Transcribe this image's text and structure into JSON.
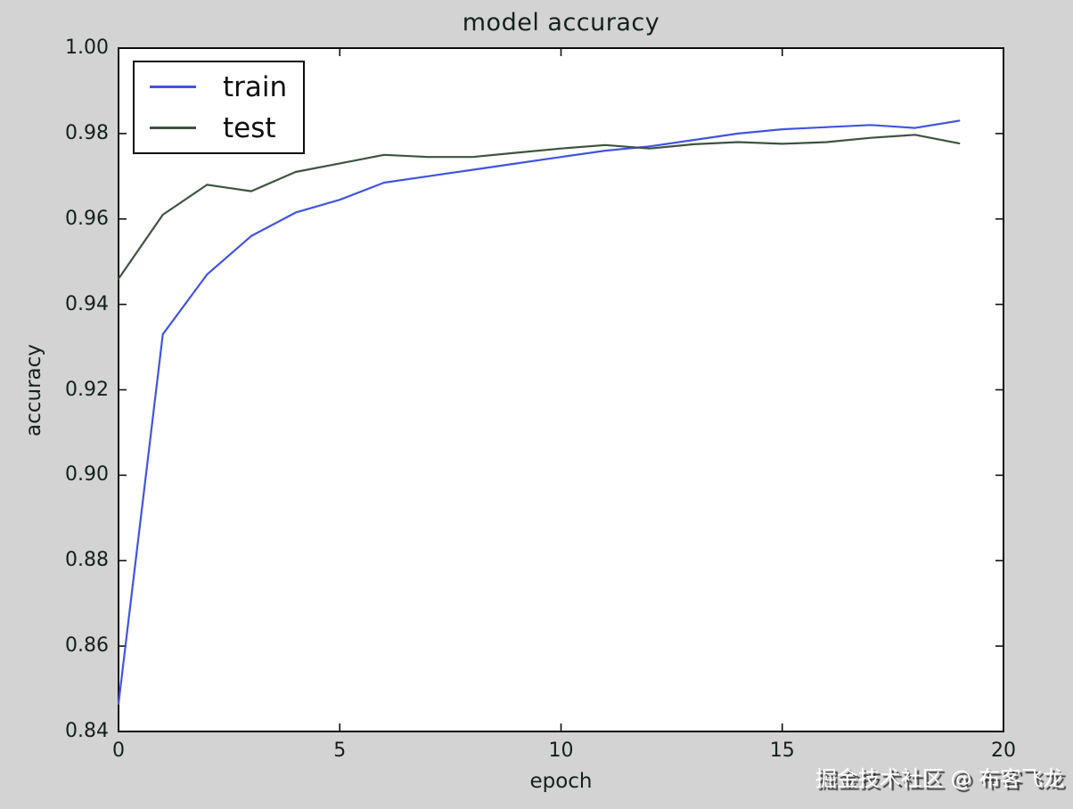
{
  "title": "model accuracy",
  "watermark": "掘金技术社区 @ 布客飞龙",
  "colors": {
    "background": "#d3d3d3",
    "plot_background": "#ffffff",
    "frame": "#111111",
    "train_line": "#4254df",
    "test_line": "#3e5340"
  },
  "chart_data": {
    "type": "line",
    "title": "model accuracy",
    "xlabel": "epoch",
    "ylabel": "accuracy",
    "xlim": [
      0,
      20
    ],
    "ylim": [
      0.84,
      1.0
    ],
    "x_ticks": [
      "0",
      "5",
      "10",
      "15",
      "20"
    ],
    "y_ticks": [
      "0.84",
      "0.86",
      "0.88",
      "0.90",
      "0.92",
      "0.94",
      "0.96",
      "0.98",
      "1.00"
    ],
    "grid": false,
    "legend_position": "upper left",
    "x": [
      0,
      1,
      2,
      3,
      4,
      5,
      6,
      7,
      8,
      9,
      10,
      11,
      12,
      13,
      14,
      15,
      16,
      17,
      18,
      19
    ],
    "series": [
      {
        "name": "train",
        "color": "#4254df",
        "values": [
          0.8465,
          0.933,
          0.947,
          0.956,
          0.9615,
          0.9645,
          0.9685,
          0.97,
          0.9715,
          0.973,
          0.9745,
          0.976,
          0.977,
          0.9785,
          0.98,
          0.981,
          0.9815,
          0.982,
          0.9813,
          0.983
        ]
      },
      {
        "name": "test",
        "color": "#3e5340",
        "values": [
          0.946,
          0.961,
          0.968,
          0.9665,
          0.971,
          0.973,
          0.975,
          0.9745,
          0.9745,
          0.9755,
          0.9765,
          0.9773,
          0.9765,
          0.9775,
          0.978,
          0.9776,
          0.978,
          0.979,
          0.9797,
          0.9777
        ]
      }
    ]
  }
}
